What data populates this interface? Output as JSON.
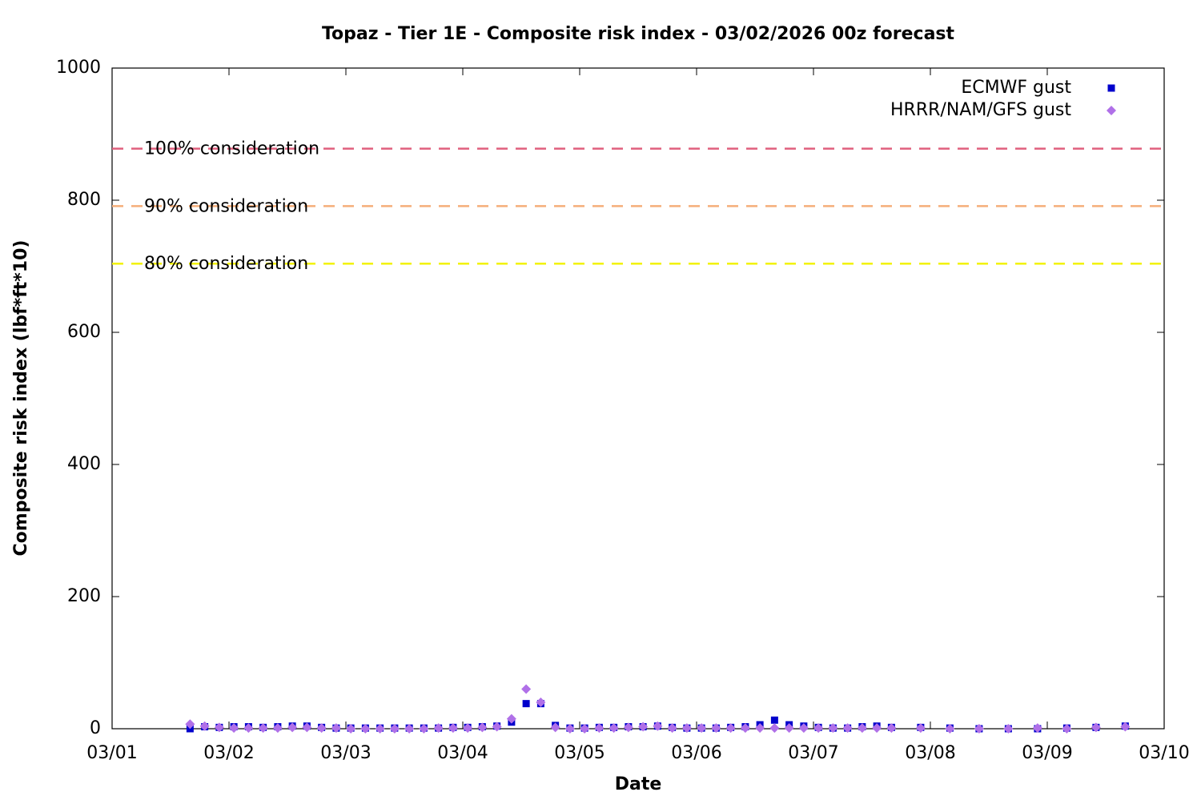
{
  "chart_data": {
    "type": "scatter",
    "title": "Topaz - Tier 1E - Composite risk index - 03/02/2026 00z forecast",
    "x_label": "Date",
    "y_label": "Composite risk index (lbf*ft*10)",
    "xlim": [
      1,
      10
    ],
    "xticks": [
      {
        "value": 1,
        "label": "03/01"
      },
      {
        "value": 2,
        "label": "03/02"
      },
      {
        "value": 3,
        "label": "03/03"
      },
      {
        "value": 4,
        "label": "03/04"
      },
      {
        "value": 5,
        "label": "03/05"
      },
      {
        "value": 6,
        "label": "03/06"
      },
      {
        "value": 7,
        "label": "03/07"
      },
      {
        "value": 8,
        "label": "03/08"
      },
      {
        "value": 9,
        "label": "03/09"
      },
      {
        "value": 10,
        "label": "03/10"
      }
    ],
    "ylim": [
      0,
      1000
    ],
    "yticks": [
      0,
      200,
      400,
      600,
      800,
      1000
    ],
    "grid": false,
    "legend": "top-right",
    "thresholds": [
      {
        "label": "100% consideration",
        "value": 878,
        "color": "#e0607e"
      },
      {
        "label": "90% consideration",
        "value": 791,
        "color": "#f5ae7a"
      },
      {
        "label": "80% consideration",
        "value": 704,
        "color": "#f2f200"
      }
    ],
    "x": [
      1.667,
      1.792,
      1.917,
      2.042,
      2.167,
      2.292,
      2.417,
      2.542,
      2.667,
      2.792,
      2.917,
      3.042,
      3.167,
      3.292,
      3.417,
      3.542,
      3.667,
      3.792,
      3.917,
      4.042,
      4.167,
      4.292,
      4.417,
      4.542,
      4.667,
      4.792,
      4.917,
      5.042,
      5.167,
      5.292,
      5.417,
      5.542,
      5.667,
      5.792,
      5.917,
      6.042,
      6.167,
      6.292,
      6.417,
      6.542,
      6.667,
      6.792,
      6.917,
      7.042,
      7.167,
      7.292,
      7.417,
      7.542,
      7.667,
      7.917,
      8.167,
      8.417,
      8.667,
      8.917,
      9.167,
      9.417,
      9.667
    ],
    "series": [
      {
        "name": "ECMWF gust",
        "color": "#0000cc",
        "marker": "square",
        "values": [
          0,
          3,
          2,
          3,
          3,
          2,
          3,
          4,
          4,
          2,
          1,
          1,
          1,
          1,
          1,
          1,
          1,
          1,
          2,
          2,
          3,
          4,
          10,
          38,
          38,
          5,
          1,
          1,
          2,
          2,
          3,
          3,
          4,
          2,
          1,
          1,
          1,
          2,
          3,
          6,
          13,
          6,
          4,
          2,
          1,
          1,
          3,
          4,
          2,
          2,
          1,
          0,
          0,
          0,
          1,
          2,
          4
        ]
      },
      {
        "name": "HRRR/NAM/GFS gust",
        "color": "#b070e8",
        "marker": "diamond",
        "values": [
          7,
          4,
          2,
          1,
          1,
          1,
          1,
          2,
          2,
          1,
          1,
          0,
          0,
          0,
          0,
          0,
          0,
          1,
          1,
          1,
          2,
          3,
          15,
          60,
          40,
          2,
          0,
          0,
          1,
          1,
          2,
          3,
          4,
          1,
          1,
          1,
          1,
          1,
          1,
          1,
          1,
          1,
          1,
          1,
          1,
          1,
          1,
          1,
          1,
          1,
          0,
          0,
          0,
          1,
          0,
          2,
          3
        ]
      }
    ]
  }
}
